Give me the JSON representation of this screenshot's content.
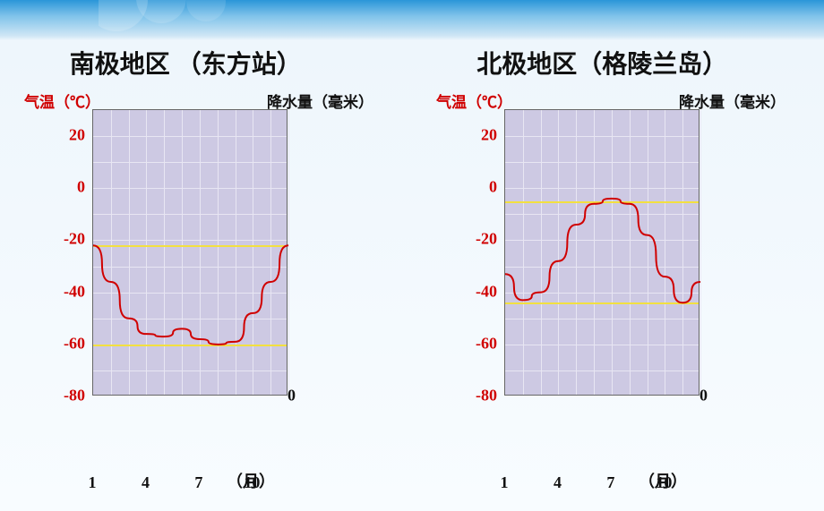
{
  "page": {
    "background_top": "#2a96d8",
    "background_bottom": "#f8fcff"
  },
  "left_chart": {
    "title": "南极地区 （东方站）",
    "temp_axis_label": "气温（℃）",
    "precip_axis_label": "降水量（毫米）",
    "type": "line",
    "plot_background": "#cdc9e3",
    "grid_color": "#e8e6f3",
    "yellow_line_color": "#f2e040",
    "line_color": "#d00000",
    "line_width": 2,
    "y_temp": {
      "min": -80,
      "max": 30,
      "ticks": [
        -80,
        -60,
        -40,
        -20,
        0,
        20
      ],
      "tick_color": "#d00000"
    },
    "y_precip": {
      "min": 0,
      "ticks": [
        0
      ],
      "tick_color": "#111111"
    },
    "x_ticks": [
      1,
      4,
      7,
      10
    ],
    "x_unit": "（月）",
    "x_range": [
      1,
      12
    ],
    "temp_values": [
      -22,
      -36,
      -50,
      -56,
      -57,
      -54,
      -58,
      -60,
      -59,
      -48,
      -36,
      -22
    ],
    "yellow_lines_at_temp": [
      -22,
      -60
    ]
  },
  "right_chart": {
    "title": "北极地区（格陵兰岛）",
    "temp_axis_label": "气温（℃）",
    "precip_axis_label": "降水量（毫米）",
    "type": "line",
    "plot_background": "#cdc9e3",
    "grid_color": "#e8e6f3",
    "yellow_line_color": "#f2e040",
    "line_color": "#d00000",
    "line_width": 2,
    "y_temp": {
      "min": -80,
      "max": 30,
      "ticks": [
        -80,
        -60,
        -40,
        -20,
        0,
        20
      ],
      "tick_color": "#d00000"
    },
    "y_precip": {
      "min": 0,
      "ticks": [
        0
      ],
      "tick_color": "#111111"
    },
    "x_ticks": [
      1,
      4,
      7,
      10
    ],
    "x_unit": "（月）",
    "x_range": [
      1,
      12
    ],
    "temp_values": [
      -33,
      -43,
      -40,
      -28,
      -14,
      -6,
      -4,
      -6,
      -18,
      -34,
      -44,
      -36
    ],
    "yellow_lines_at_temp": [
      -5,
      -44
    ]
  }
}
